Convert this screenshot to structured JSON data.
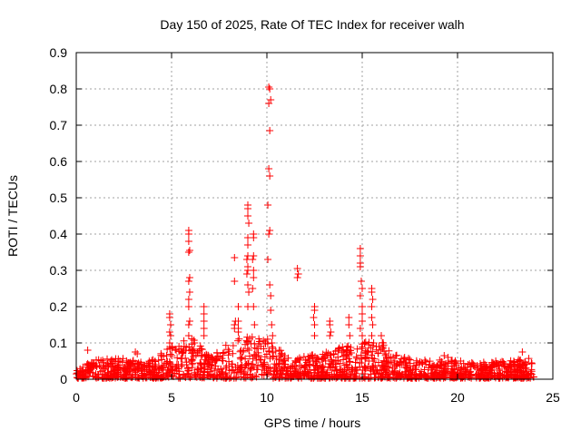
{
  "chart_data": {
    "type": "scatter",
    "title": "Day 150 of 2025, Rate Of TEC Index for receiver walh",
    "xlabel": "GPS time / hours",
    "ylabel": "ROTI / TECUs",
    "xlim": [
      0,
      25
    ],
    "ylim": [
      0,
      0.9
    ],
    "xticks": [
      "0",
      "5",
      "10",
      "15",
      "20",
      "25"
    ],
    "yticks": [
      "0",
      "0.1",
      "0.2",
      "0.3",
      "0.4",
      "0.5",
      "0.6",
      "0.7",
      "0.8",
      "0.9"
    ],
    "grid": true,
    "marker": "+",
    "color": "#ff0000",
    "baseline_envelope_hourly": [
      0.04,
      0.05,
      0.06,
      0.05,
      0.05,
      0.09,
      0.12,
      0.06,
      0.1,
      0.12,
      0.12,
      0.06,
      0.06,
      0.07,
      0.09,
      0.1,
      0.1,
      0.06,
      0.05,
      0.05,
      0.05,
      0.04,
      0.05,
      0.05,
      0.06
    ],
    "points": [
      [
        0.6,
        0.08
      ],
      [
        3.1,
        0.075
      ],
      [
        3.2,
        0.07
      ],
      [
        19.3,
        0.065
      ],
      [
        19.5,
        0.06
      ],
      [
        23.4,
        0.075
      ],
      [
        4.9,
        0.18
      ],
      [
        4.9,
        0.17
      ],
      [
        4.95,
        0.15
      ],
      [
        4.9,
        0.13
      ],
      [
        4.95,
        0.12
      ],
      [
        4.9,
        0.1
      ],
      [
        5.9,
        0.41
      ],
      [
        5.9,
        0.4
      ],
      [
        5.9,
        0.38
      ],
      [
        5.95,
        0.355
      ],
      [
        5.9,
        0.35
      ],
      [
        5.95,
        0.28
      ],
      [
        5.9,
        0.27
      ],
      [
        5.95,
        0.24
      ],
      [
        5.9,
        0.22
      ],
      [
        5.9,
        0.2
      ],
      [
        5.95,
        0.16
      ],
      [
        5.9,
        0.15
      ],
      [
        5.9,
        0.12
      ],
      [
        6.7,
        0.2
      ],
      [
        6.7,
        0.18
      ],
      [
        6.7,
        0.16
      ],
      [
        6.7,
        0.14
      ],
      [
        6.7,
        0.12
      ],
      [
        8.3,
        0.335
      ],
      [
        8.3,
        0.27
      ],
      [
        8.35,
        0.16
      ],
      [
        8.3,
        0.15
      ],
      [
        8.3,
        0.14
      ],
      [
        8.5,
        0.2
      ],
      [
        8.5,
        0.16
      ],
      [
        8.5,
        0.14
      ],
      [
        8.5,
        0.13
      ],
      [
        9.0,
        0.48
      ],
      [
        9.0,
        0.47
      ],
      [
        9.0,
        0.45
      ],
      [
        9.05,
        0.43
      ],
      [
        9.0,
        0.39
      ],
      [
        9.0,
        0.37
      ],
      [
        9.0,
        0.34
      ],
      [
        8.95,
        0.33
      ],
      [
        9.0,
        0.31
      ],
      [
        9.0,
        0.3
      ],
      [
        8.95,
        0.29
      ],
      [
        9.0,
        0.26
      ],
      [
        9.05,
        0.24
      ],
      [
        9.0,
        0.2
      ],
      [
        9.3,
        0.4
      ],
      [
        9.3,
        0.39
      ],
      [
        9.3,
        0.34
      ],
      [
        9.25,
        0.33
      ],
      [
        9.3,
        0.3
      ],
      [
        9.3,
        0.28
      ],
      [
        9.25,
        0.25
      ],
      [
        9.3,
        0.2
      ],
      [
        9.35,
        0.15
      ],
      [
        10.1,
        0.805
      ],
      [
        10.15,
        0.8
      ],
      [
        10.2,
        0.77
      ],
      [
        10.1,
        0.76
      ],
      [
        10.15,
        0.685
      ],
      [
        10.1,
        0.58
      ],
      [
        10.15,
        0.56
      ],
      [
        10.05,
        0.48
      ],
      [
        10.15,
        0.41
      ],
      [
        10.1,
        0.4
      ],
      [
        10.05,
        0.33
      ],
      [
        10.15,
        0.26
      ],
      [
        10.2,
        0.23
      ],
      [
        10.2,
        0.19
      ],
      [
        10.25,
        0.15
      ],
      [
        10.3,
        0.12
      ],
      [
        11.6,
        0.305
      ],
      [
        11.65,
        0.29
      ],
      [
        11.6,
        0.28
      ],
      [
        12.5,
        0.2
      ],
      [
        12.5,
        0.19
      ],
      [
        12.45,
        0.17
      ],
      [
        12.5,
        0.15
      ],
      [
        12.5,
        0.12
      ],
      [
        13.3,
        0.16
      ],
      [
        13.3,
        0.15
      ],
      [
        13.35,
        0.13
      ],
      [
        13.3,
        0.12
      ],
      [
        14.3,
        0.17
      ],
      [
        14.3,
        0.15
      ],
      [
        14.35,
        0.12
      ],
      [
        14.9,
        0.36
      ],
      [
        14.9,
        0.34
      ],
      [
        14.9,
        0.32
      ],
      [
        14.9,
        0.31
      ],
      [
        14.95,
        0.27
      ],
      [
        15.0,
        0.25
      ],
      [
        14.9,
        0.23
      ],
      [
        15.0,
        0.2
      ],
      [
        15.0,
        0.18
      ],
      [
        15.0,
        0.16
      ],
      [
        14.9,
        0.14
      ],
      [
        15.0,
        0.12
      ],
      [
        15.5,
        0.25
      ],
      [
        15.5,
        0.24
      ],
      [
        15.55,
        0.22
      ],
      [
        15.5,
        0.2
      ],
      [
        15.5,
        0.17
      ],
      [
        15.55,
        0.15
      ],
      [
        15.5,
        0.12
      ],
      [
        15.6,
        0.1
      ],
      [
        16.0,
        0.12
      ],
      [
        16.1,
        0.1
      ]
    ]
  }
}
